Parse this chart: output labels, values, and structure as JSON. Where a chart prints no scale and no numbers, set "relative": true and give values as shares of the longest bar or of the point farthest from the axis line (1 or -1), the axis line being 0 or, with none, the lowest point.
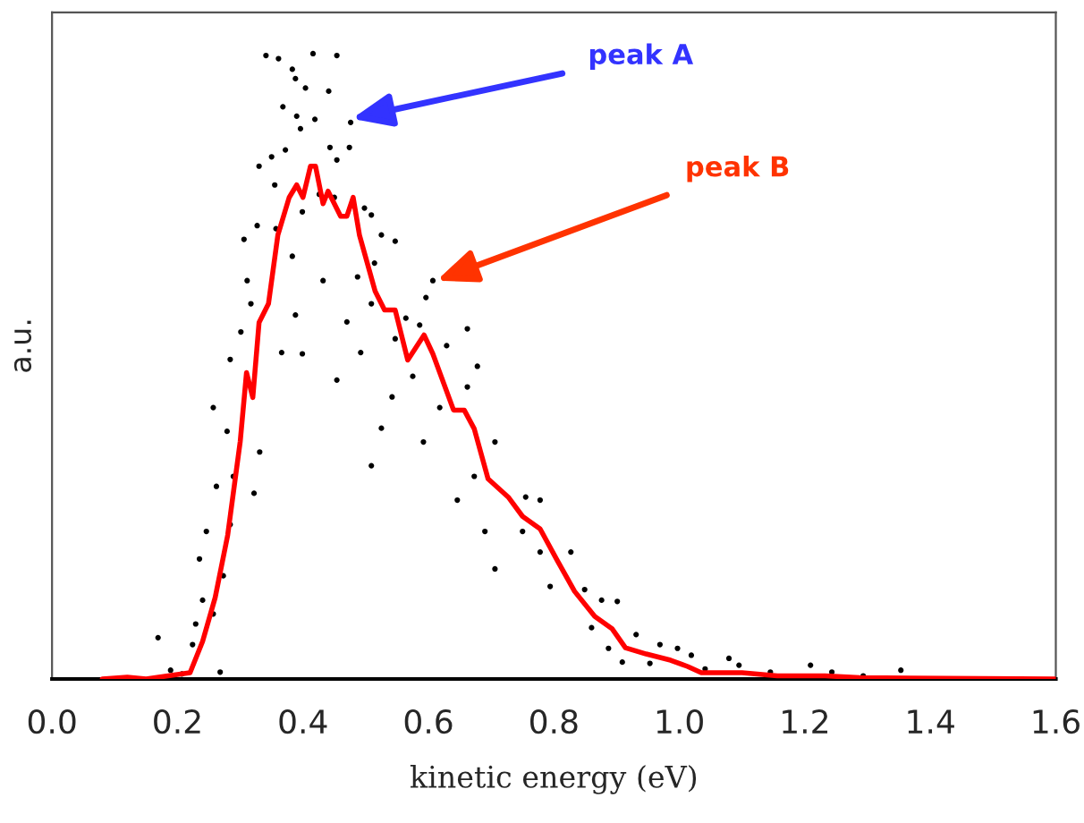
{
  "chart_data": {
    "type": "scatter",
    "xlabel": "kinetic energy (eV)",
    "ylabel": "a.u.",
    "relative": true,
    "xlim": [
      0,
      1.6
    ],
    "xticks": [
      {
        "value": 0,
        "label": "0.0"
      },
      {
        "value": 0.2,
        "label": "0.2"
      },
      {
        "value": 0.4,
        "label": "0.4"
      },
      {
        "value": 0.6,
        "label": "0.6"
      },
      {
        "value": 0.8,
        "label": "0.8"
      },
      {
        "value": 1.0,
        "label": "1.0"
      },
      {
        "value": 1.2,
        "label": "1.2"
      },
      {
        "value": 1.4,
        "label": "1.4"
      },
      {
        "value": 1.6,
        "label": "1.6"
      }
    ],
    "grid": false,
    "annotations": [
      {
        "text": "peak A",
        "x": 0.478,
        "y": 0.896
      },
      {
        "text": "peak B",
        "x": 0.613,
        "y": 0.637
      }
    ],
    "series": [
      {
        "color": "#000000",
        "marker": "circle",
        "x": [
          0.341,
          0.361,
          0.416,
          0.454,
          0.383,
          0.388,
          0.404,
          0.441,
          0.368,
          0.39,
          0.419,
          0.396,
          0.476,
          0.474,
          0.443,
          0.372,
          0.35,
          0.454,
          0.33,
          0.355,
          0.426,
          0.45,
          0.399,
          0.498,
          0.509,
          0.525,
          0.327,
          0.306,
          0.357,
          0.547,
          0.383,
          0.514,
          0.311,
          0.432,
          0.487,
          0.607,
          0.596,
          0.317,
          0.509,
          0.388,
          0.47,
          0.564,
          0.662,
          0.586,
          0.547,
          0.301,
          0.366,
          0.399,
          0.492,
          0.629,
          0.678,
          0.284,
          0.454,
          0.575,
          0.542,
          0.257,
          0.618,
          0.662,
          0.279,
          0.525,
          0.592,
          0.706,
          0.331,
          0.289,
          0.509,
          0.673,
          0.262,
          0.646,
          0.755,
          0.778,
          0.322,
          0.246,
          0.69,
          0.75,
          0.284,
          0.706,
          0.778,
          0.827,
          0.235,
          0.273,
          0.794,
          0.849,
          0.24,
          0.876,
          0.901,
          0.86,
          0.931,
          0.229,
          0.257,
          0.224,
          0.169,
          0.887,
          0.969,
          0.909,
          0.953,
          0.997,
          1.019,
          1.041,
          1.079,
          1.095,
          1.145,
          1.209,
          1.243,
          1.353,
          1.293,
          0.189,
          0.207,
          0.268
        ],
        "values": [
          0.997,
          0.992,
          1.0,
          0.997,
          0.975,
          0.96,
          0.945,
          0.94,
          0.915,
          0.9,
          0.895,
          0.88,
          0.89,
          0.85,
          0.85,
          0.846,
          0.835,
          0.83,
          0.82,
          0.79,
          0.775,
          0.77,
          0.747,
          0.753,
          0.742,
          0.71,
          0.725,
          0.703,
          0.72,
          0.7,
          0.676,
          0.665,
          0.637,
          0.637,
          0.643,
          0.637,
          0.61,
          0.6,
          0.6,
          0.582,
          0.571,
          0.577,
          0.56,
          0.566,
          0.544,
          0.555,
          0.522,
          0.52,
          0.522,
          0.533,
          0.5,
          0.511,
          0.478,
          0.484,
          0.451,
          0.434,
          0.434,
          0.467,
          0.396,
          0.401,
          0.379,
          0.379,
          0.363,
          0.324,
          0.341,
          0.324,
          0.308,
          0.286,
          0.291,
          0.286,
          0.297,
          0.236,
          0.236,
          0.236,
          0.247,
          0.176,
          0.203,
          0.203,
          0.192,
          0.165,
          0.148,
          0.143,
          0.126,
          0.126,
          0.124,
          0.082,
          0.071,
          0.088,
          0.104,
          0.055,
          0.066,
          0.049,
          0.055,
          0.027,
          0.025,
          0.049,
          0.038,
          0.016,
          0.033,
          0.022,
          0.011,
          0.022,
          0.011,
          0.014,
          0.005,
          0.014,
          0.008,
          0.011
        ]
      },
      {
        "type": "line",
        "color": "#ff0000",
        "marker": "none",
        "line_style": "solid",
        "x": [
          0.08,
          0.12,
          0.15,
          0.22,
          0.24,
          0.26,
          0.28,
          0.3,
          0.31,
          0.32,
          0.33,
          0.345,
          0.36,
          0.378,
          0.39,
          0.4,
          0.412,
          0.42,
          0.432,
          0.44,
          0.46,
          0.47,
          0.48,
          0.49,
          0.515,
          0.53,
          0.547,
          0.567,
          0.58,
          0.593,
          0.607,
          0.64,
          0.657,
          0.673,
          0.695,
          0.728,
          0.75,
          0.778,
          0.805,
          0.833,
          0.865,
          0.893,
          0.914,
          0.947,
          0.986,
          1.013,
          1.035,
          1.1,
          1.156,
          1.232,
          1.287,
          1.6
        ],
        "values": [
          0,
          0.003,
          0,
          0.01,
          0.06,
          0.13,
          0.23,
          0.38,
          0.49,
          0.45,
          0.57,
          0.6,
          0.71,
          0.77,
          0.79,
          0.77,
          0.82,
          0.82,
          0.76,
          0.78,
          0.74,
          0.74,
          0.77,
          0.71,
          0.62,
          0.59,
          0.59,
          0.51,
          0.53,
          0.55,
          0.52,
          0.43,
          0.43,
          0.4,
          0.32,
          0.29,
          0.26,
          0.24,
          0.19,
          0.14,
          0.1,
          0.08,
          0.05,
          0.04,
          0.03,
          0.02,
          0.01,
          0.01,
          0.005,
          0.005,
          0.002,
          0
        ]
      }
    ]
  }
}
